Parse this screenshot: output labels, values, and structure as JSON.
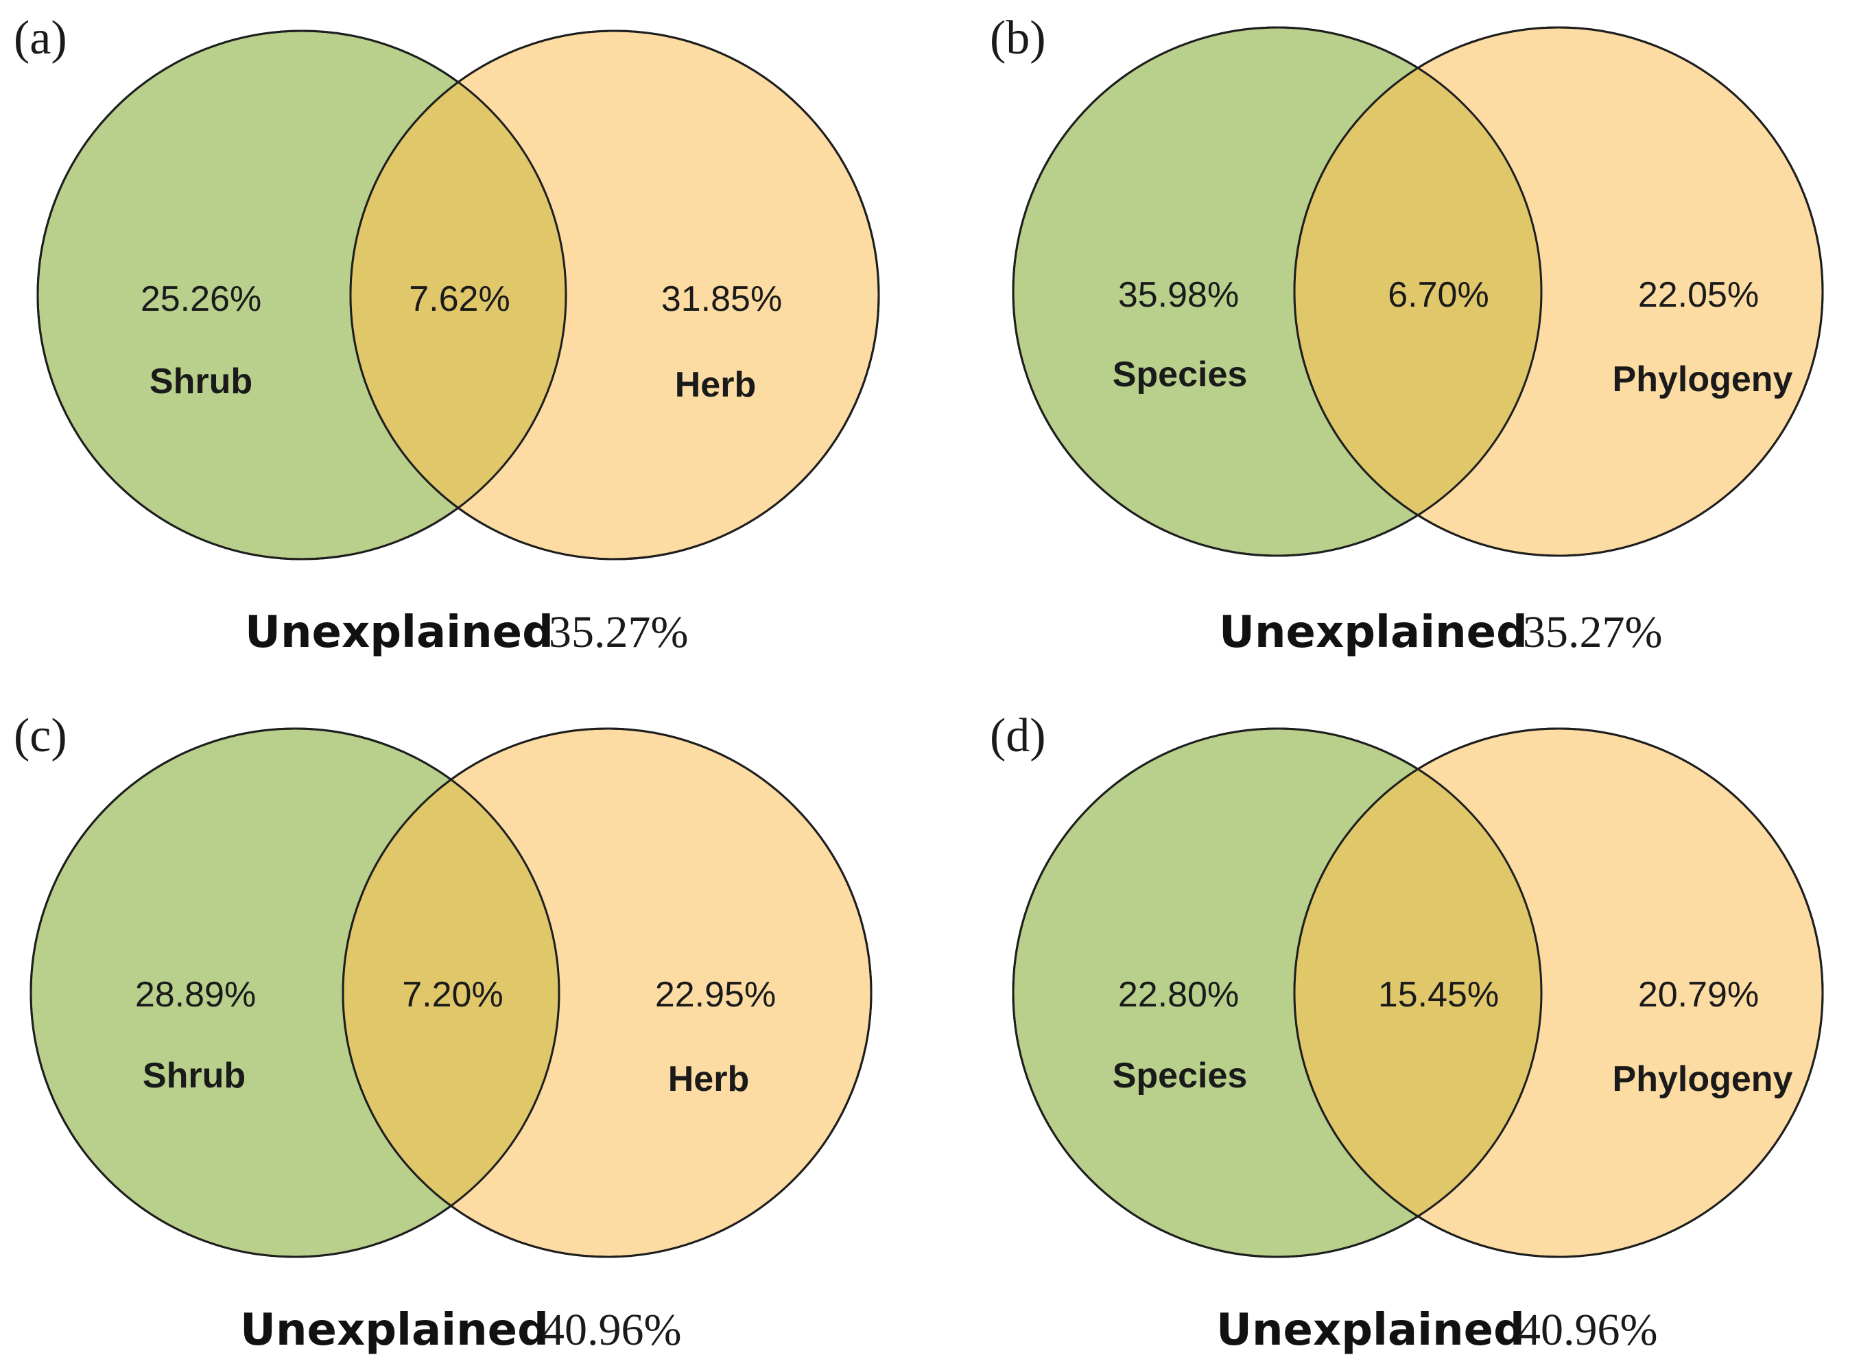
{
  "colors": {
    "left_fill": "#b8d08c",
    "right_fill": "#fcdca3",
    "overlap_fill": "#dfc76a",
    "stroke": "#1e1e1e"
  },
  "panels": [
    {
      "label": "(a)",
      "left": {
        "name": "Shrub",
        "value": "25.26%"
      },
      "overlap": {
        "value": "7.62%"
      },
      "right": {
        "name": "Herb",
        "value": "31.85%"
      },
      "unexplained": {
        "label": "Unexplained",
        "value": "35.27%"
      }
    },
    {
      "label": "(b)",
      "left": {
        "name": "Species",
        "value": "35.98%"
      },
      "overlap": {
        "value": "6.70%"
      },
      "right": {
        "name": "Phylogeny",
        "value": "22.05%"
      },
      "unexplained": {
        "label": "Unexplained",
        "value": "35.27%"
      }
    },
    {
      "label": "(c)",
      "left": {
        "name": "Shrub",
        "value": "28.89%"
      },
      "overlap": {
        "value": "7.20%"
      },
      "right": {
        "name": "Herb",
        "value": "22.95%"
      },
      "unexplained": {
        "label": "Unexplained",
        "value": "40.96%"
      }
    },
    {
      "label": "(d)",
      "left": {
        "name": "Species",
        "value": "22.80%"
      },
      "overlap": {
        "value": "15.45%"
      },
      "right": {
        "name": "Phylogeny",
        "value": "20.79%"
      },
      "unexplained": {
        "label": "Unexplained",
        "value": "40.96%"
      }
    }
  ]
}
